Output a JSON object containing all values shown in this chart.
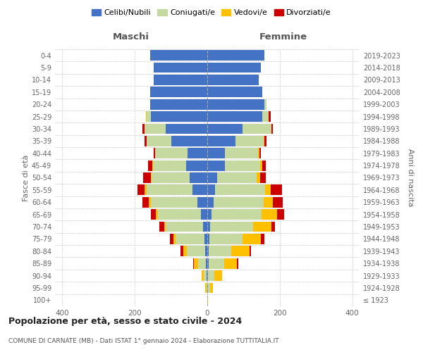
{
  "age_groups": [
    "100+",
    "95-99",
    "90-94",
    "85-89",
    "80-84",
    "75-79",
    "70-74",
    "65-69",
    "60-64",
    "55-59",
    "50-54",
    "45-49",
    "40-44",
    "35-39",
    "30-34",
    "25-29",
    "20-24",
    "15-19",
    "10-14",
    "5-9",
    "0-4"
  ],
  "birth_years": [
    "≤ 1923",
    "1924-1928",
    "1929-1933",
    "1934-1938",
    "1939-1943",
    "1944-1948",
    "1949-1953",
    "1954-1958",
    "1959-1963",
    "1964-1968",
    "1969-1973",
    "1974-1978",
    "1979-1983",
    "1984-1988",
    "1989-1993",
    "1994-1998",
    "1999-2003",
    "2004-2008",
    "2009-2013",
    "2014-2018",
    "2019-2023"
  ],
  "maschi": {
    "celibi": [
      0,
      0,
      2,
      4,
      6,
      8,
      12,
      18,
      28,
      40,
      48,
      58,
      55,
      100,
      115,
      155,
      158,
      158,
      148,
      148,
      158
    ],
    "coniugati": [
      0,
      2,
      8,
      22,
      50,
      80,
      102,
      118,
      128,
      128,
      105,
      92,
      88,
      68,
      58,
      12,
      0,
      0,
      0,
      0,
      0
    ],
    "vedovi": [
      0,
      3,
      5,
      10,
      10,
      5,
      5,
      5,
      5,
      5,
      3,
      2,
      0,
      0,
      0,
      2,
      0,
      0,
      0,
      0,
      0
    ],
    "divorziati": [
      0,
      0,
      0,
      3,
      8,
      10,
      14,
      14,
      18,
      20,
      20,
      12,
      5,
      5,
      5,
      0,
      0,
      0,
      0,
      0,
      0
    ]
  },
  "femmine": {
    "celibi": [
      0,
      2,
      2,
      4,
      4,
      6,
      8,
      12,
      18,
      22,
      28,
      48,
      48,
      78,
      98,
      152,
      158,
      152,
      142,
      148,
      158
    ],
    "coniugati": [
      0,
      5,
      18,
      42,
      62,
      92,
      118,
      138,
      138,
      138,
      108,
      98,
      92,
      78,
      78,
      18,
      5,
      0,
      0,
      0,
      0
    ],
    "vedovi": [
      2,
      8,
      20,
      35,
      50,
      50,
      50,
      42,
      25,
      15,
      10,
      5,
      3,
      2,
      0,
      0,
      0,
      0,
      0,
      0,
      0
    ],
    "divorziati": [
      0,
      0,
      0,
      5,
      5,
      10,
      10,
      20,
      28,
      32,
      15,
      10,
      5,
      5,
      5,
      5,
      0,
      0,
      0,
      0,
      0
    ]
  },
  "colors": {
    "celibi": "#4472c4",
    "coniugati": "#c5d9a0",
    "vedovi": "#ffc000",
    "divorziati": "#cc0000"
  },
  "legend_labels": [
    "Celibi/Nubili",
    "Coniugati/e",
    "Vedovi/e",
    "Divorziati/e"
  ],
  "title_main": "Popolazione per età, sesso e stato civile - 2024",
  "title_sub": "COMUNE DI CARNATE (MB) - Dati ISTAT 1° gennaio 2024 - Elaborazione TUTTITALIA.IT",
  "label_maschi": "Maschi",
  "label_femmine": "Femmine",
  "ylabel_left": "Fasce di età",
  "ylabel_right": "Anni di nascita",
  "xlim": 420,
  "bg_color": "#ffffff",
  "grid_color": "#cccccc",
  "bar_height": 0.85
}
